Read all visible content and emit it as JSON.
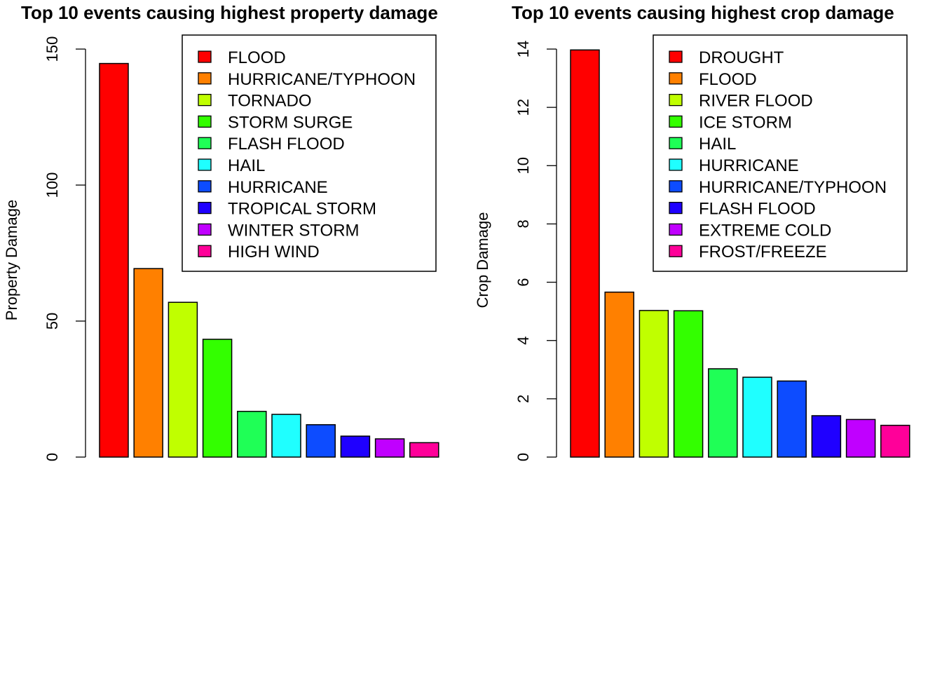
{
  "chart_data": [
    {
      "type": "bar",
      "title": "Top 10 events causing highest property damage",
      "xlabel": "",
      "ylabel": "Property Damage",
      "ylim": [
        0,
        150
      ],
      "yticks": [
        0,
        50,
        100,
        150
      ],
      "categories": [
        "FLOOD",
        "HURRICANE/TYPHOON",
        "TORNADO",
        "STORM SURGE",
        "FLASH FLOOD",
        "HAIL",
        "HURRICANE",
        "TROPICAL STORM",
        "WINTER STORM",
        "HIGH WIND"
      ],
      "values": [
        144.7,
        69.3,
        56.9,
        43.3,
        16.8,
        15.7,
        11.9,
        7.7,
        6.7,
        5.3
      ],
      "colors": [
        "#FF0000",
        "#FF8000",
        "#C0FF00",
        "#33FF00",
        "#1FFF56",
        "#1FFFFF",
        "#0D4CFF",
        "#1F00FF",
        "#C000FF",
        "#FF0099"
      ],
      "legend_position": "top-right",
      "grid": false
    },
    {
      "type": "bar",
      "title": "Top 10 events causing highest crop damage",
      "xlabel": "",
      "ylabel": "Crop Damage",
      "ylim": [
        0,
        14
      ],
      "yticks": [
        0,
        2,
        4,
        6,
        8,
        10,
        12,
        14
      ],
      "categories": [
        "DROUGHT",
        "FLOOD",
        "RIVER FLOOD",
        "ICE STORM",
        "HAIL",
        "HURRICANE",
        "HURRICANE/TYPHOON",
        "FLASH FLOOD",
        "EXTREME COLD",
        "FROST/FREEZE"
      ],
      "values": [
        13.97,
        5.66,
        5.03,
        5.02,
        3.03,
        2.74,
        2.61,
        1.42,
        1.29,
        1.09
      ],
      "colors": [
        "#FF0000",
        "#FF8000",
        "#C0FF00",
        "#33FF00",
        "#1FFF56",
        "#1FFFFF",
        "#0D4CFF",
        "#1F00FF",
        "#C000FF",
        "#FF0099"
      ],
      "legend_position": "top-right",
      "grid": false
    }
  ]
}
